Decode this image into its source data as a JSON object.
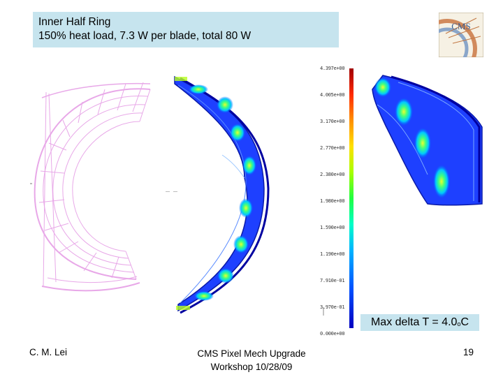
{
  "title": {
    "line1": "Inner Half Ring",
    "line2": "150% heat load,  7.3 W per blade, total 80 W"
  },
  "logo": {
    "text": "CMS"
  },
  "colorbar": {
    "labels": [
      "4.397e+00",
      "4.005e+00",
      "3.170e+00",
      "2.770e+00",
      "2.380e+00",
      "1.980e+00",
      "1.590e+00",
      "1.190e+00",
      "7.910e-01",
      "3.970e-01",
      "0.000e+00"
    ],
    "colors": [
      "#b00000",
      "#ff2a00",
      "#ff9000",
      "#ffe000",
      "#a8ff00",
      "#20ff40",
      "#00ffc8",
      "#00b4ff",
      "#0050ff",
      "#0000c8"
    ]
  },
  "annotation": {
    "text": "Max delta T = 4.0",
    "degree": "o",
    "unit": "C"
  },
  "footer": {
    "author": "C. M. Lei",
    "event_line1": "CMS Pixel Mech Upgrade",
    "event_line2": "Workshop 10/28/09",
    "page": "19"
  }
}
